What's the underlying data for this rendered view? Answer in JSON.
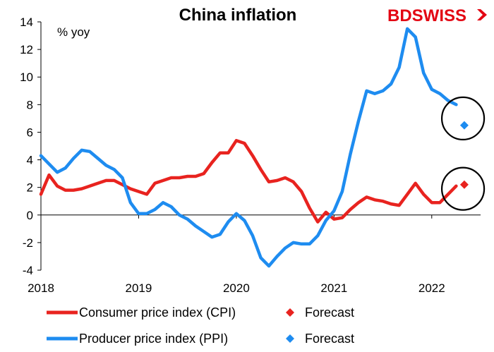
{
  "brand": {
    "part1": "BD",
    "part2": "SWISS",
    "color_bd": "#e30613",
    "color_swiss": "#e30613",
    "mark_color": "#e30613"
  },
  "chart_data": {
    "type": "line",
    "title": "China inflation",
    "ylabel": "% yoy",
    "xlabel": "",
    "ylim": [
      -4,
      14
    ],
    "yticks": [
      -4,
      -2,
      0,
      2,
      4,
      6,
      8,
      10,
      12,
      14
    ],
    "xlim": [
      2018.0,
      2022.5
    ],
    "xticks": [
      {
        "value": 2018,
        "label": "2018"
      },
      {
        "value": 2019,
        "label": "2019"
      },
      {
        "value": 2020,
        "label": "2020"
      },
      {
        "value": 2021,
        "label": "2021"
      },
      {
        "value": 2022,
        "label": "2022"
      }
    ],
    "series": [
      {
        "name": "Consumer price index (CPI)",
        "color": "#e8231f",
        "start": "2018-01",
        "values": [
          1.5,
          2.9,
          2.1,
          1.8,
          1.8,
          1.9,
          2.1,
          2.3,
          2.5,
          2.5,
          2.2,
          1.9,
          1.7,
          1.5,
          2.3,
          2.5,
          2.7,
          2.7,
          2.8,
          2.8,
          3.0,
          3.8,
          4.5,
          4.5,
          5.4,
          5.2,
          4.3,
          3.3,
          2.4,
          2.5,
          2.7,
          2.4,
          1.7,
          0.5,
          -0.5,
          0.2,
          -0.3,
          -0.2,
          0.4,
          0.9,
          1.3,
          1.1,
          1.0,
          0.8,
          0.7,
          1.5,
          2.3,
          1.5,
          0.9,
          0.9,
          1.5,
          2.1
        ]
      },
      {
        "name": "Producer price index (PPI)",
        "color": "#1e8cf0",
        "start": "2018-01",
        "values": [
          4.3,
          3.7,
          3.1,
          3.4,
          4.1,
          4.7,
          4.6,
          4.1,
          3.6,
          3.3,
          2.7,
          0.9,
          0.1,
          0.1,
          0.4,
          0.9,
          0.6,
          0.0,
          -0.3,
          -0.8,
          -1.2,
          -1.6,
          -1.4,
          -0.5,
          0.1,
          -0.4,
          -1.5,
          -3.1,
          -3.7,
          -3.0,
          -2.4,
          -2.0,
          -2.1,
          -2.1,
          -1.5,
          -0.4,
          0.3,
          1.7,
          4.4,
          6.8,
          9.0,
          8.8,
          9.0,
          9.5,
          10.7,
          13.5,
          12.9,
          10.3,
          9.1,
          8.8,
          8.3,
          8.0
        ]
      }
    ],
    "forecasts": [
      {
        "name": "Forecast",
        "series": "CPI",
        "date": "2022-05",
        "value": 2.2,
        "color": "#e8231f"
      },
      {
        "name": "Forecast",
        "series": "PPI",
        "date": "2022-05",
        "value": 6.5,
        "color": "#1e8cf0"
      }
    ],
    "highlight_circles": [
      {
        "label": "PPI forecast",
        "center_year": 2022.32,
        "center_value": 7.0
      },
      {
        "label": "CPI forecast",
        "center_year": 2022.32,
        "center_value": 1.9
      }
    ],
    "legend": {
      "placement": "bottom",
      "items": [
        {
          "label": "Consumer price index (CPI)",
          "kind": "line",
          "color": "#e8231f"
        },
        {
          "label": "Forecast",
          "kind": "diamond",
          "color": "#e8231f"
        },
        {
          "label": "Producer price index (PPI)",
          "kind": "line",
          "color": "#1e8cf0"
        },
        {
          "label": "Forecast",
          "kind": "diamond",
          "color": "#1e8cf0"
        }
      ]
    }
  }
}
